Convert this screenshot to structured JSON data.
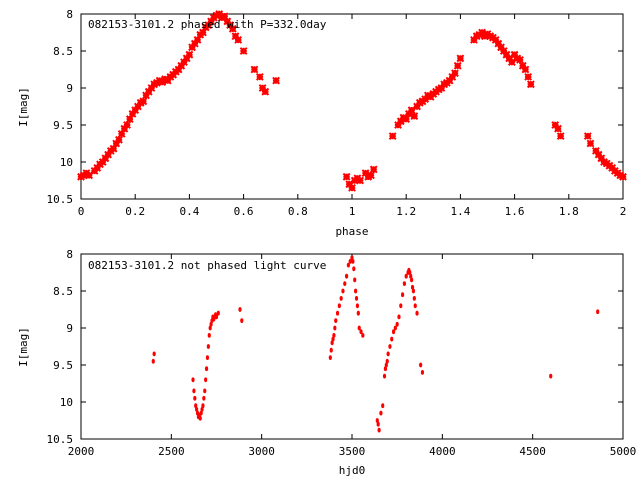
{
  "chart_data": [
    {
      "type": "scatter",
      "title": "082153-3101.2 phased with P=332.0day",
      "xlabel": "phase",
      "ylabel": "I[mag]",
      "xlim": [
        0,
        2
      ],
      "ylim": [
        10.5,
        8
      ],
      "y_inverted": true,
      "grid": false,
      "marker_color": "#ff0000",
      "x_ticks": [
        "0",
        "0.2",
        "0.4",
        "0.6",
        "0.8",
        "1",
        "1.2",
        "1.4",
        "1.6",
        "1.8",
        "2"
      ],
      "y_ticks": [
        "8",
        "8.5",
        "9",
        "9.5",
        "10",
        "10.5"
      ],
      "series": [
        {
          "x": [
            0.0,
            0.01,
            0.02,
            0.03,
            0.05,
            0.06,
            0.07,
            0.08,
            0.09,
            0.1,
            0.11,
            0.12,
            0.13,
            0.14,
            0.15,
            0.16,
            0.17,
            0.18,
            0.19,
            0.2,
            0.21,
            0.22,
            0.23,
            0.24,
            0.25,
            0.26,
            0.27,
            0.28,
            0.29,
            0.3,
            0.31,
            0.32,
            0.33,
            0.34,
            0.35,
            0.36,
            0.37,
            0.38,
            0.39,
            0.4,
            0.41,
            0.42,
            0.43,
            0.44,
            0.45,
            0.46,
            0.47,
            0.48,
            0.49,
            0.5,
            0.51,
            0.52,
            0.53,
            0.54,
            0.55,
            0.56,
            0.57,
            0.58,
            0.6,
            0.64,
            0.66,
            0.67,
            0.68,
            0.72,
            0.98,
            0.99,
            1.0,
            1.01,
            1.02,
            1.03,
            1.05,
            1.06,
            1.07,
            1.08,
            1.15,
            1.17,
            1.18,
            1.19,
            1.2,
            1.21,
            1.22,
            1.23,
            1.24,
            1.25,
            1.26,
            1.27,
            1.28,
            1.29,
            1.3,
            1.31,
            1.32,
            1.33,
            1.34,
            1.35,
            1.36,
            1.37,
            1.38,
            1.39,
            1.4,
            1.45,
            1.46,
            1.47,
            1.48,
            1.49,
            1.5,
            1.51,
            1.52,
            1.53,
            1.54,
            1.55,
            1.56,
            1.57,
            1.58,
            1.59,
            1.6,
            1.61,
            1.62,
            1.63,
            1.64,
            1.65,
            1.66,
            1.75,
            1.76,
            1.77,
            1.87,
            1.88,
            1.9,
            1.91,
            1.92,
            1.93,
            1.94,
            1.95,
            1.96,
            1.97,
            1.98,
            1.99,
            2.0
          ],
          "y": [
            10.2,
            10.18,
            10.15,
            10.18,
            10.12,
            10.08,
            10.03,
            10.0,
            9.95,
            9.9,
            9.85,
            9.82,
            9.75,
            9.7,
            9.62,
            9.55,
            9.5,
            9.42,
            9.35,
            9.3,
            9.25,
            9.2,
            9.18,
            9.1,
            9.05,
            9.0,
            8.95,
            8.93,
            8.9,
            8.92,
            8.88,
            8.9,
            8.85,
            8.82,
            8.78,
            8.75,
            8.7,
            8.65,
            8.6,
            8.55,
            8.45,
            8.4,
            8.35,
            8.28,
            8.25,
            8.18,
            8.15,
            8.1,
            8.05,
            8.02,
            8.0,
            8.05,
            8.03,
            8.1,
            8.15,
            8.2,
            8.3,
            8.35,
            8.5,
            8.75,
            8.85,
            9.0,
            9.05,
            8.9,
            10.2,
            10.3,
            10.35,
            10.25,
            10.22,
            10.25,
            10.15,
            10.2,
            10.18,
            10.1,
            9.65,
            9.5,
            9.45,
            9.4,
            9.42,
            9.35,
            9.3,
            9.38,
            9.25,
            9.2,
            9.18,
            9.15,
            9.1,
            9.12,
            9.08,
            9.05,
            9.02,
            9.0,
            8.95,
            8.93,
            8.9,
            8.85,
            8.8,
            8.7,
            8.6,
            8.35,
            8.3,
            8.28,
            8.25,
            8.3,
            8.27,
            8.3,
            8.32,
            8.35,
            8.4,
            8.45,
            8.5,
            8.55,
            8.6,
            8.65,
            8.55,
            8.6,
            8.62,
            8.7,
            8.75,
            8.85,
            8.95,
            9.5,
            9.55,
            9.65,
            9.65,
            9.75,
            9.85,
            9.9,
            9.95,
            10.0,
            10.02,
            10.05,
            10.08,
            10.12,
            10.15,
            10.18,
            10.2
          ]
        }
      ]
    },
    {
      "type": "scatter",
      "title": "082153-3101.2 not phased light curve",
      "xlabel": "hjd0",
      "ylabel": "I[mag]",
      "xlim": [
        2000,
        5000
      ],
      "ylim": [
        10.5,
        8
      ],
      "y_inverted": true,
      "grid": false,
      "marker_color": "#ff0000",
      "x_ticks": [
        "2000",
        "2500",
        "3000",
        "3500",
        "4000",
        "4500",
        "5000"
      ],
      "y_ticks": [
        "8",
        "8.5",
        "9",
        "9.5",
        "10",
        "10.5"
      ],
      "series": [
        {
          "x": [
            2400,
            2405,
            2620,
            2625,
            2630,
            2635,
            2640,
            2645,
            2650,
            2655,
            2660,
            2665,
            2670,
            2675,
            2680,
            2685,
            2690,
            2695,
            2700,
            2705,
            2710,
            2715,
            2720,
            2725,
            2730,
            2735,
            2740,
            2745,
            2750,
            2760,
            2880,
            2890,
            3380,
            3385,
            3390,
            3395,
            3400,
            3405,
            3410,
            3420,
            3430,
            3440,
            3450,
            3460,
            3470,
            3480,
            3490,
            3500,
            3505,
            3510,
            3515,
            3520,
            3525,
            3530,
            3535,
            3540,
            3550,
            3560,
            3640,
            3645,
            3650,
            3660,
            3670,
            3680,
            3685,
            3690,
            3695,
            3700,
            3710,
            3720,
            3730,
            3740,
            3750,
            3760,
            3770,
            3780,
            3790,
            3800,
            3810,
            3815,
            3820,
            3825,
            3830,
            3835,
            3840,
            3845,
            3850,
            3860,
            3880,
            3890,
            4600,
            4860
          ],
          "y": [
            9.45,
            9.35,
            9.7,
            9.85,
            9.95,
            10.05,
            10.1,
            10.15,
            10.2,
            10.18,
            10.22,
            10.15,
            10.1,
            10.05,
            9.95,
            9.85,
            9.7,
            9.55,
            9.4,
            9.25,
            9.1,
            9.0,
            8.95,
            8.9,
            8.85,
            8.88,
            8.85,
            8.82,
            8.85,
            8.8,
            8.75,
            8.9,
            9.4,
            9.3,
            9.2,
            9.15,
            9.1,
            9.0,
            8.9,
            8.8,
            8.7,
            8.6,
            8.5,
            8.4,
            8.3,
            8.15,
            8.1,
            8.05,
            8.1,
            8.2,
            8.35,
            8.5,
            8.6,
            8.7,
            8.8,
            9.0,
            9.05,
            9.1,
            10.25,
            10.3,
            10.38,
            10.15,
            10.05,
            9.65,
            9.55,
            9.5,
            9.45,
            9.35,
            9.25,
            9.15,
            9.05,
            9.0,
            8.95,
            8.85,
            8.7,
            8.55,
            8.4,
            8.3,
            8.25,
            8.22,
            8.25,
            8.3,
            8.35,
            8.45,
            8.5,
            8.6,
            8.7,
            8.8,
            9.5,
            9.6,
            9.65,
            8.78
          ]
        }
      ]
    }
  ]
}
